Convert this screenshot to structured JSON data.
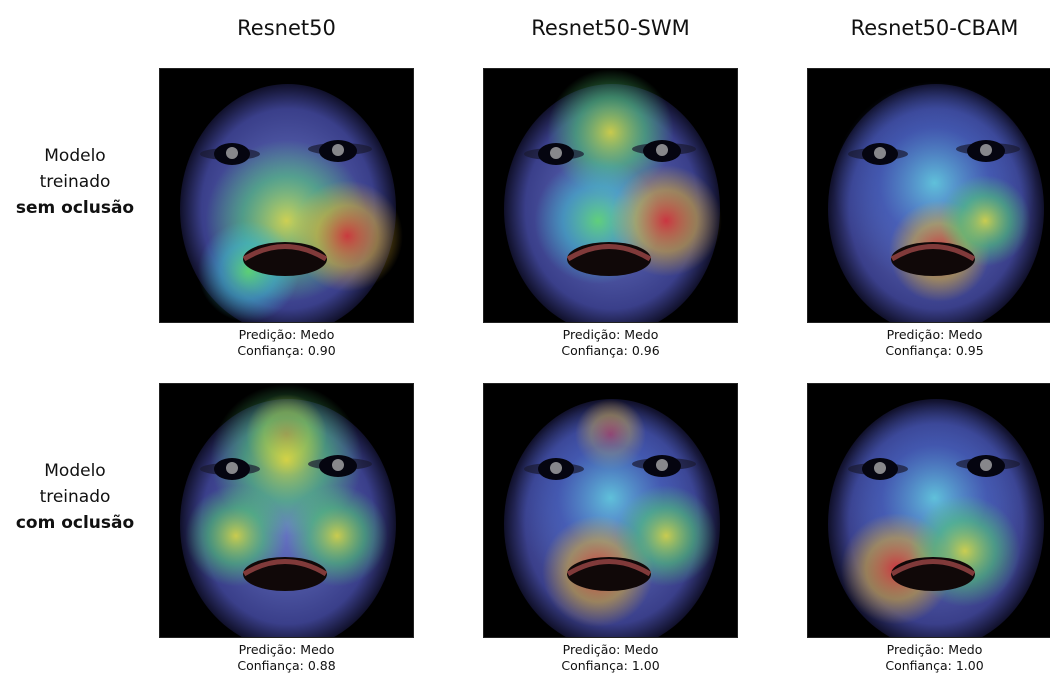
{
  "columns": [
    "Resnet50",
    "Resnet50-SWM",
    "Resnet50-CBAM"
  ],
  "rows": [
    {
      "label_lines": [
        "Modelo",
        "treinado"
      ],
      "label_emphasis": "sem oclusão",
      "cells": [
        {
          "prediction": "Predição: Medo",
          "confidence": "Confiança: 0.90"
        },
        {
          "prediction": "Predição: Medo",
          "confidence": "Confiança: 0.96"
        },
        {
          "prediction": "Predição: Medo",
          "confidence": "Confiança: 0.95"
        }
      ]
    },
    {
      "label_lines": [
        "Modelo",
        "treinado"
      ],
      "label_emphasis": "com oclusão",
      "cells": [
        {
          "prediction": "Predição: Medo",
          "confidence": "Confiança: 0.88"
        },
        {
          "prediction": "Predição: Medo",
          "confidence": "Confiança: 1.00"
        },
        {
          "prediction": "Predição: Medo",
          "confidence": "Confiança: 1.00"
        }
      ]
    }
  ]
}
